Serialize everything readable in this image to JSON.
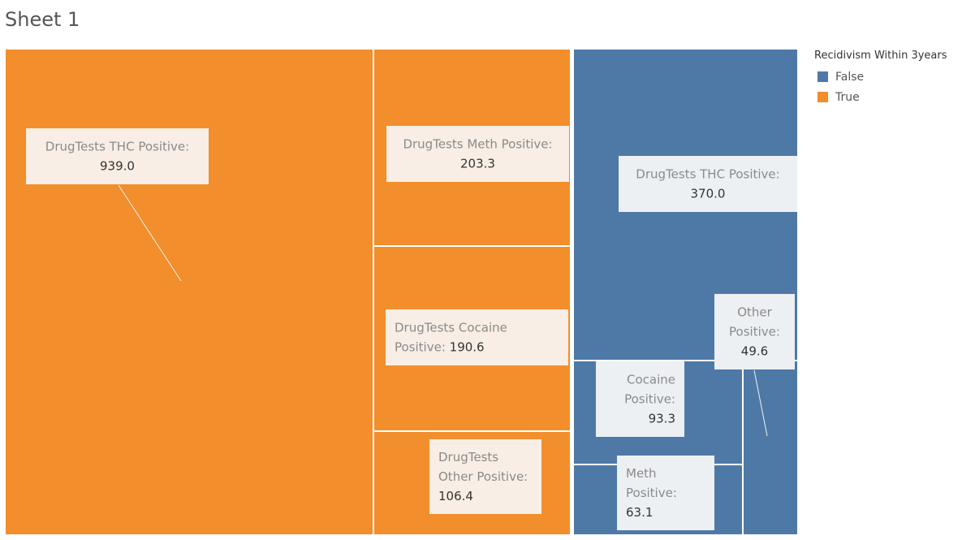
{
  "sheet": {
    "title": "Sheet 1"
  },
  "legend": {
    "title": "Recidivism Within 3years",
    "items": [
      {
        "label": "False",
        "color": "#4e79a7"
      },
      {
        "label": "True",
        "color": "#f28e2b"
      }
    ]
  },
  "chart_data": {
    "type": "treemap",
    "title": "",
    "color_field": "Recidivism Within 3years",
    "groups": [
      {
        "name": "True",
        "color": "#f28e2b",
        "items": [
          {
            "label": "DrugTests THC Positive",
            "value": 939.0,
            "display_value": "939.0"
          },
          {
            "label": "DrugTests Meth Positive",
            "value": 203.3,
            "display_value": "203.3"
          },
          {
            "label": "DrugTests Cocaine Positive",
            "value": 190.6,
            "display_value": "190.6"
          },
          {
            "label": "DrugTests Other Positive",
            "value": 106.4,
            "display_value": "106.4"
          }
        ]
      },
      {
        "name": "False",
        "color": "#4e79a7",
        "items": [
          {
            "label": "DrugTests THC Positive",
            "value": 370.0,
            "display_value": "370.0"
          },
          {
            "label": "Cocaine Positive",
            "value": 93.3,
            "display_value": "93.3"
          },
          {
            "label": "Meth Positive",
            "value": 63.1,
            "display_value": "63.1"
          },
          {
            "label": "Other Positive",
            "value": 49.6,
            "display_value": "49.6"
          }
        ]
      }
    ]
  }
}
